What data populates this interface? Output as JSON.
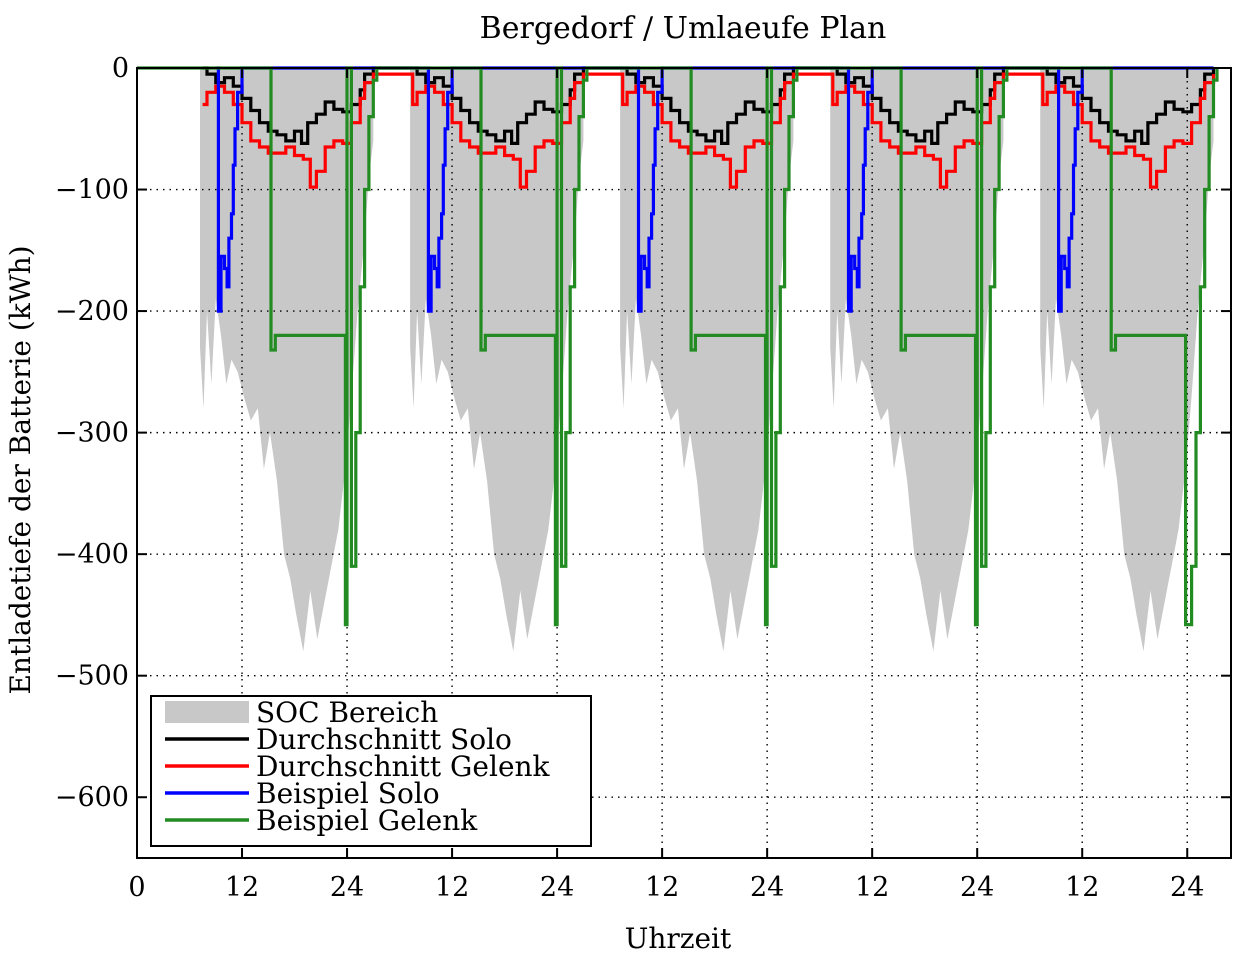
{
  "chart_data": {
    "type": "area",
    "title": "Bergedorf / Umlaeufe Plan",
    "xlabel": "Uhrzeit",
    "ylabel": "Entladetiefe der Batterie (kWh)",
    "xlim": [
      0,
      125
    ],
    "ylim": [
      -650,
      0
    ],
    "x_ticks": [
      0,
      12,
      24,
      36,
      48,
      60,
      72,
      84,
      96,
      108,
      120
    ],
    "x_tick_labels": [
      "0",
      "12",
      "24",
      "12",
      "24",
      "12",
      "24",
      "12",
      "24",
      "12",
      "24"
    ],
    "y_ticks": [
      0,
      -100,
      -200,
      -300,
      -400,
      -500,
      -600
    ],
    "y_tick_labels": [
      "0",
      "−100",
      "−200",
      "−300",
      "−400",
      "−500",
      "−600"
    ],
    "grid": true,
    "grid_style": "dotted",
    "legend_position": "bottom-left",
    "day_offsets": [
      0,
      24,
      48,
      72,
      96
    ],
    "day_length_h": 24,
    "series": [
      {
        "name": "SOC Bereich",
        "kind": "band",
        "color": "#c8c8c8",
        "per_day_lower": {
          "x": [
            7.2,
            7.6,
            8.0,
            8.5,
            9.0,
            9.6,
            10.2,
            10.8,
            11.5,
            12.2,
            13.0,
            13.8,
            14.5,
            15.2,
            16.0,
            16.8,
            17.5,
            18.2,
            19.0,
            19.8,
            20.6,
            21.4,
            22.2,
            23.0,
            23.8,
            24.5,
            25.2,
            26.0,
            26.5,
            27.0
          ],
          "y": [
            -230,
            -280,
            -200,
            -260,
            -190,
            -220,
            -260,
            -240,
            -250,
            -270,
            -290,
            -280,
            -330,
            -300,
            -340,
            -400,
            -420,
            -450,
            -480,
            -430,
            -470,
            -440,
            -410,
            -380,
            -330,
            -270,
            -200,
            -140,
            -90,
            -60
          ]
        },
        "per_day_upper": {
          "x": [
            7.2,
            10.0,
            13.0,
            16.0,
            20.0,
            24.0,
            27.0
          ],
          "y": [
            0,
            0,
            0,
            0,
            0,
            0,
            0
          ]
        }
      },
      {
        "name": "Durchschnitt Solo",
        "kind": "line",
        "color": "#000000",
        "per_day": {
          "x": [
            7.5,
            8.0,
            9.0,
            10.0,
            11.0,
            12.0,
            13.0,
            14.0,
            15.0,
            16.0,
            17.0,
            18.0,
            18.8,
            19.5,
            20.5,
            21.5,
            22.5,
            23.5,
            24.5,
            25.5,
            26.0,
            27.0
          ],
          "y": [
            0,
            -5,
            -12,
            -8,
            -15,
            -25,
            -35,
            -45,
            -52,
            -55,
            -60,
            -52,
            -62,
            -45,
            -38,
            -28,
            -34,
            -36,
            -30,
            -18,
            -5,
            0
          ]
        }
      },
      {
        "name": "Durchschnitt Gelenk",
        "kind": "line",
        "color": "#ff0000",
        "per_day": {
          "x": [
            7.5,
            8.0,
            9.0,
            10.0,
            11.0,
            12.0,
            13.0,
            14.0,
            15.0,
            16.0,
            17.0,
            18.0,
            19.0,
            19.8,
            20.5,
            21.5,
            22.5,
            23.5,
            24.5,
            25.5,
            26.0,
            27.0
          ],
          "y": [
            -30,
            -20,
            -15,
            -20,
            -30,
            -45,
            -60,
            -65,
            -70,
            -70,
            -65,
            -72,
            -75,
            -98,
            -85,
            -65,
            -60,
            -62,
            -45,
            -25,
            -12,
            -5
          ]
        }
      },
      {
        "name": "Beispiel Solo",
        "kind": "line",
        "color": "#0000ff",
        "per_day": {
          "x": [
            9.0,
            9.3,
            9.6,
            10.0,
            10.3,
            10.5,
            10.8,
            11.0,
            11.2,
            11.5,
            12.0,
            27.0
          ],
          "y": [
            0,
            -200,
            -155,
            -165,
            -180,
            -140,
            -120,
            -80,
            -50,
            -20,
            0,
            0
          ]
        }
      },
      {
        "name": "Beispiel Gelenk",
        "kind": "line",
        "color": "#228b22",
        "per_day": {
          "x": [
            0,
            15.3,
            15.31,
            15.8,
            23.8,
            23.81,
            24.5,
            25.0,
            25.5,
            26.0,
            26.5,
            27.0,
            27.4
          ],
          "y": [
            0,
            0,
            -232,
            -220,
            -220,
            -458,
            -410,
            -300,
            -180,
            -100,
            -40,
            -10,
            0
          ]
        }
      }
    ]
  }
}
